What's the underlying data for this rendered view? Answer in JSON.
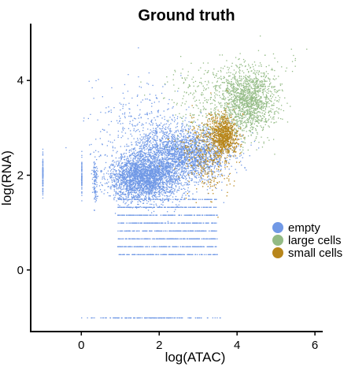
{
  "chart_data": {
    "type": "scatter",
    "title": "Ground truth",
    "xlabel": "log(ATAC)",
    "ylabel": "log(RNA)",
    "xlim": [
      -1.3,
      6.2
    ],
    "ylim": [
      -1.3,
      5.2
    ],
    "x_ticks": [
      0,
      2,
      4,
      6
    ],
    "y_ticks": [
      0,
      2,
      4
    ],
    "legend_position": "right",
    "series": [
      {
        "name": "empty",
        "color": "#7199e6",
        "values": [
          {
            "x": -1.0,
            "y": 2.0,
            "sx": 0.0,
            "sy": 0.18,
            "n": 120,
            "kind": "point"
          },
          {
            "x": 0.0,
            "y": 1.95,
            "sx": 0.0,
            "sy": 0.2,
            "n": 70,
            "kind": "point"
          },
          {
            "x": 0.35,
            "y": 1.9,
            "sx": 0.03,
            "sy": 0.28,
            "n": 100,
            "kind": "point"
          },
          {
            "x": 1.6,
            "y": 1.95,
            "sx": 0.45,
            "sy": 0.25,
            "n": 2600,
            "kind": "point"
          },
          {
            "x": 2.75,
            "y": 2.45,
            "sx": 0.55,
            "sy": 0.28,
            "n": 1800,
            "kind": "point"
          },
          {
            "x": 2.0,
            "y": 2.55,
            "sx": 0.4,
            "sy": 0.35,
            "n": 400,
            "kind": "point"
          },
          {
            "x": 2.2,
            "y": 0.9,
            "sx": 0.8,
            "sy": 0.35,
            "n": 1200,
            "kind": "band"
          },
          {
            "x": 1.5,
            "y": 3.0,
            "sx": 0.6,
            "sy": 0.5,
            "n": 300,
            "kind": "point"
          },
          {
            "x": 1.7,
            "y": -1.0,
            "sx": 0.8,
            "sy": 0.0,
            "n": 140,
            "kind": "point"
          }
        ]
      },
      {
        "name": "large cells",
        "color": "#93bb85",
        "values": [
          {
            "x": 4.3,
            "y": 3.6,
            "sx": 0.35,
            "sy": 0.35,
            "n": 1300,
            "kind": "point"
          },
          {
            "x": 3.5,
            "y": 3.4,
            "sx": 0.55,
            "sy": 0.45,
            "n": 350,
            "kind": "point"
          },
          {
            "x": 3.0,
            "y": 3.9,
            "sx": 0.5,
            "sy": 0.2,
            "n": 90,
            "kind": "point"
          },
          {
            "x": 5.5,
            "y": 4.5,
            "sx": 0.3,
            "sy": 0.2,
            "n": 8,
            "kind": "point"
          }
        ]
      },
      {
        "name": "small cells",
        "color": "#b8861b",
        "values": [
          {
            "x": 3.65,
            "y": 2.85,
            "sx": 0.18,
            "sy": 0.2,
            "n": 800,
            "kind": "point"
          },
          {
            "x": 3.2,
            "y": 2.6,
            "sx": 0.35,
            "sy": 0.35,
            "n": 300,
            "kind": "point"
          },
          {
            "x": 3.3,
            "y": 2.1,
            "sx": 0.3,
            "sy": 0.3,
            "n": 90,
            "kind": "point"
          }
        ]
      }
    ]
  }
}
